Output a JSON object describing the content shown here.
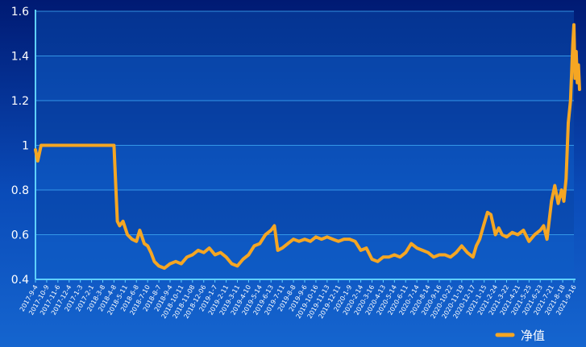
{
  "chart_data": {
    "type": "line",
    "title": "",
    "xlabel": "",
    "ylabel": "",
    "ylim": [
      0.4,
      1.6
    ],
    "y_ticks": [
      "0.4",
      "0.6",
      "0.8",
      "1",
      "1.2",
      "1.4",
      "1.6"
    ],
    "grid": true,
    "legend_position": "bottom-right",
    "x_tick_labels": [
      "2017-9-4",
      "2017-10-9",
      "2017-11-6",
      "2017-12-4",
      "2017-1-3",
      "2017-2-1",
      "2018-3-8",
      "2018-4-8",
      "2018-5-11",
      "2018-6-8",
      "2018-7-10",
      "2018-8-7",
      "2018-9-4",
      "2018-10-11",
      "2018-11-08",
      "2018-12-06",
      "2019-1-7",
      "2019-2-11",
      "2019-3-11",
      "2019-4-10",
      "2019-5-14",
      "2019-6-13",
      "2019-7-11",
      "2019-8-8",
      "2019-9-6",
      "2019-10-16",
      "2019-11-13",
      "2019-12-11",
      "2020-1-9",
      "2020-2-14",
      "2020-3-16",
      "2020-4-13",
      "2020-5-14",
      "2020-6-11",
      "2020-7-14",
      "2020-8-14",
      "2020-9-16",
      "2020-10-22",
      "2020-11-19",
      "2020-12-17",
      "2021-1-15",
      "2021-2-24",
      "2021-3-22",
      "2021-4-21",
      "2021-5-25",
      "2021-6-23",
      "2021-7-21",
      "2021-8-18",
      "2021-9-16"
    ],
    "series": [
      {
        "name": "净值",
        "color": "#f5a623",
        "x": [
          0,
          0.2,
          0.5,
          1,
          2,
          3,
          4,
          5,
          6,
          7,
          7.3,
          7.5,
          7.8,
          8.2,
          8.6,
          9,
          9.3,
          9.7,
          10,
          10.3,
          10.6,
          11,
          11.5,
          12,
          12.5,
          13,
          13.5,
          14,
          14.5,
          15,
          15.5,
          16,
          16.5,
          17,
          17.5,
          18,
          18.5,
          19,
          19.5,
          20,
          20.5,
          21,
          21.3,
          21.6,
          22,
          22.5,
          23,
          23.5,
          24,
          24.5,
          25,
          25.5,
          26,
          26.5,
          27,
          27.5,
          28,
          28.5,
          29,
          29.5,
          30,
          30.5,
          31,
          31.5,
          32,
          32.5,
          33,
          33.5,
          34,
          34.5,
          35,
          35.5,
          36,
          36.5,
          37,
          37.5,
          38,
          38.5,
          39,
          39.3,
          39.6,
          40,
          40.3,
          40.6,
          41,
          41.3,
          41.6,
          42,
          42.5,
          43,
          43.5,
          44,
          44.5,
          45,
          45.3,
          45.6,
          46,
          46.3,
          46.6,
          46.9,
          47.1,
          47.3,
          47.5,
          47.7,
          47.9,
          48,
          48.1,
          48.2,
          48.3,
          48.4,
          48.5
        ],
        "y": [
          0.98,
          0.93,
          1.0,
          1.0,
          1.0,
          1.0,
          1.0,
          1.0,
          1.0,
          1.0,
          0.66,
          0.64,
          0.66,
          0.6,
          0.58,
          0.57,
          0.62,
          0.56,
          0.55,
          0.52,
          0.48,
          0.46,
          0.45,
          0.47,
          0.48,
          0.47,
          0.5,
          0.51,
          0.53,
          0.52,
          0.54,
          0.51,
          0.52,
          0.5,
          0.47,
          0.46,
          0.49,
          0.51,
          0.55,
          0.56,
          0.6,
          0.62,
          0.64,
          0.53,
          0.54,
          0.56,
          0.58,
          0.57,
          0.58,
          0.57,
          0.59,
          0.58,
          0.59,
          0.58,
          0.57,
          0.58,
          0.58,
          0.57,
          0.53,
          0.54,
          0.49,
          0.48,
          0.5,
          0.5,
          0.51,
          0.5,
          0.52,
          0.56,
          0.54,
          0.53,
          0.52,
          0.5,
          0.51,
          0.51,
          0.5,
          0.52,
          0.55,
          0.52,
          0.5,
          0.55,
          0.58,
          0.65,
          0.7,
          0.69,
          0.6,
          0.63,
          0.6,
          0.59,
          0.61,
          0.6,
          0.62,
          0.57,
          0.6,
          0.62,
          0.64,
          0.58,
          0.75,
          0.82,
          0.74,
          0.8,
          0.75,
          0.85,
          1.1,
          1.2,
          1.45,
          1.54,
          1.3,
          1.42,
          1.28,
          1.36,
          1.25
        ]
      }
    ]
  }
}
